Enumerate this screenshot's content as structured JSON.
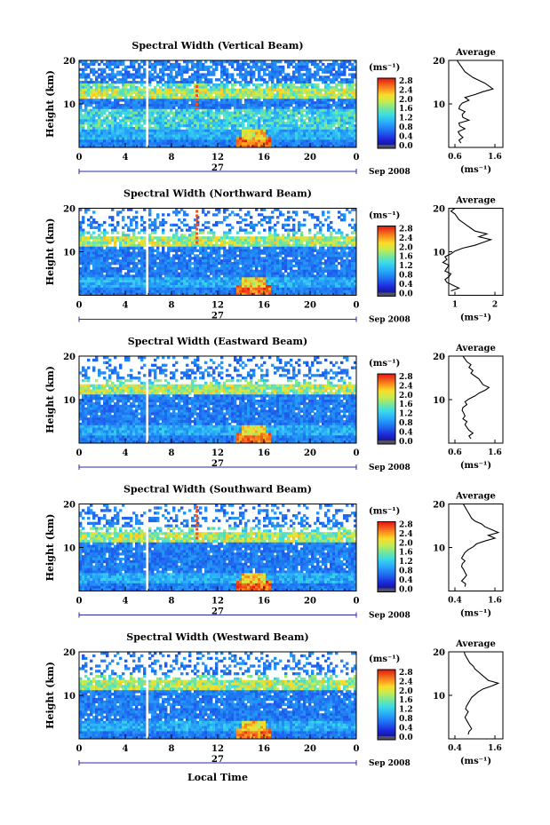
{
  "chart_data": {
    "type": "heatmap",
    "figure_xlabel": "Local Time",
    "panels": [
      {
        "title": "Spectral Width (Vertical Beam)",
        "ylabel": "Height (km)",
        "yticks": [
          "20",
          "10"
        ],
        "xticks": [
          "0",
          "4",
          "8",
          "12",
          "16",
          "20",
          "0"
        ],
        "date_day": "27",
        "date_label": "Sep 2008",
        "colorbar_unit": "(ms⁻¹)",
        "colorbar_ticks": [
          "2.8",
          "2.4",
          "2.0",
          "1.6",
          "1.2",
          "0.8",
          "0.4",
          "0.0"
        ],
        "avg_title": "Average",
        "avg_xlabel": "(ms⁻¹)",
        "avg_yticks": [
          "20",
          "10"
        ],
        "avg_xticks": [
          "0.6",
          "1.6"
        ],
        "avg_profile": [
          0.75,
          0.7,
          0.8,
          0.72,
          0.68,
          0.85,
          0.72,
          0.7,
          0.95,
          0.8,
          0.78,
          0.85,
          0.7,
          0.72,
          0.78,
          0.95,
          0.85,
          1.1,
          1.3,
          1.55,
          1.45,
          1.35,
          1.2,
          1.05,
          0.95,
          0.85,
          0.8,
          0.75,
          0.7,
          0.65
        ]
      },
      {
        "title": "Spectral Width (Northward Beam)",
        "ylabel": "Height (km)",
        "yticks": [
          "20",
          "10"
        ],
        "xticks": [
          "0",
          "4",
          "8",
          "12",
          "16",
          "20",
          "0"
        ],
        "date_day": "27",
        "date_label": "Sep 2008",
        "colorbar_unit": "(ms⁻¹)",
        "colorbar_ticks": [
          "2.8",
          "2.4",
          "2.0",
          "1.6",
          "1.2",
          "0.8",
          "0.4",
          "0.0"
        ],
        "avg_title": "Average",
        "avg_xlabel": "(ms⁻¹)",
        "avg_yticks": [
          "20",
          "10"
        ],
        "avg_xticks": [
          "1",
          "2"
        ],
        "avg_profile": [
          0.9,
          1.1,
          0.95,
          0.8,
          0.75,
          0.85,
          0.9,
          0.75,
          0.8,
          0.85,
          0.7,
          0.8,
          0.75,
          0.9,
          1.0,
          1.2,
          1.5,
          1.7,
          1.9,
          1.6,
          1.8,
          1.5,
          1.4,
          1.3,
          1.2,
          1.1,
          1.05,
          1.0,
          0.9,
          1.0
        ]
      },
      {
        "title": "Spectral Width (Eastward Beam)",
        "ylabel": "Height (km)",
        "yticks": [
          "20",
          "10"
        ],
        "xticks": [
          "0",
          "4",
          "8",
          "12",
          "16",
          "20",
          "0"
        ],
        "date_day": "27",
        "date_label": "Sep 2008",
        "colorbar_unit": "(ms⁻¹)",
        "colorbar_ticks": [
          "2.8",
          "2.4",
          "2.0",
          "1.6",
          "1.2",
          "0.8",
          "0.4",
          "0.0"
        ],
        "avg_title": "Average",
        "avg_xlabel": "(ms⁻¹)",
        "avg_yticks": [
          "20",
          "10"
        ],
        "avg_xticks": [
          "0.6",
          "1.6"
        ],
        "avg_profile": [
          1.0,
          0.95,
          1.05,
          0.95,
          0.9,
          0.85,
          0.9,
          0.8,
          0.85,
          0.82,
          0.78,
          0.8,
          0.9,
          0.85,
          0.95,
          1.1,
          1.2,
          1.35,
          1.45,
          1.3,
          1.25,
          1.2,
          1.1,
          1.0,
          1.05,
          0.95,
          1.0,
          0.9,
          0.85,
          0.8
        ]
      },
      {
        "title": "Spectral Width (Southward Beam)",
        "ylabel": "Height (km)",
        "yticks": [
          "20",
          "10"
        ],
        "xticks": [
          "0",
          "4",
          "8",
          "12",
          "16",
          "20",
          "0"
        ],
        "date_day": "27",
        "date_label": "Sep 2008",
        "colorbar_unit": "(ms⁻¹)",
        "colorbar_ticks": [
          "2.8",
          "2.4",
          "2.0",
          "1.6",
          "1.2",
          "0.8",
          "0.4",
          "0.0"
        ],
        "avg_title": "Average",
        "avg_xlabel": "(ms⁻¹)",
        "avg_yticks": [
          "20",
          "10"
        ],
        "avg_xticks": [
          "0.4",
          "1.6"
        ],
        "avg_profile": [
          0.7,
          0.72,
          0.6,
          0.68,
          0.75,
          0.7,
          0.66,
          0.6,
          0.62,
          0.7,
          0.6,
          0.65,
          0.7,
          0.8,
          0.95,
          1.05,
          1.3,
          1.6,
          1.4,
          1.7,
          1.5,
          1.3,
          1.2,
          1.0,
          0.9,
          0.85,
          0.8,
          0.75,
          0.7,
          0.65
        ]
      },
      {
        "title": "Spectral Width (Westward Beam)",
        "ylabel": "Height (km)",
        "yticks": [
          "20",
          "10"
        ],
        "xticks": [
          "0",
          "4",
          "8",
          "12",
          "16",
          "20",
          "0"
        ],
        "date_day": "27",
        "date_label": "Sep 2008",
        "colorbar_unit": "(ms⁻¹)",
        "colorbar_ticks": [
          "2.8",
          "2.4",
          "2.0",
          "1.6",
          "1.2",
          "0.8",
          "0.4",
          "0.0"
        ],
        "avg_title": "Average",
        "avg_xlabel": "(ms⁻¹)",
        "avg_yticks": [
          "20",
          "10"
        ],
        "avg_xticks": [
          "0.4",
          "1.6"
        ],
        "avg_profile": [
          0.8,
          0.82,
          0.9,
          0.85,
          0.8,
          0.75,
          0.7,
          0.75,
          0.8,
          0.72,
          0.75,
          0.8,
          0.85,
          0.9,
          1.0,
          1.1,
          1.25,
          1.5,
          1.7,
          1.4,
          1.3,
          1.2,
          1.1,
          1.0,
          0.95,
          0.85,
          0.8,
          0.75,
          0.7,
          0.68
        ]
      }
    ]
  }
}
